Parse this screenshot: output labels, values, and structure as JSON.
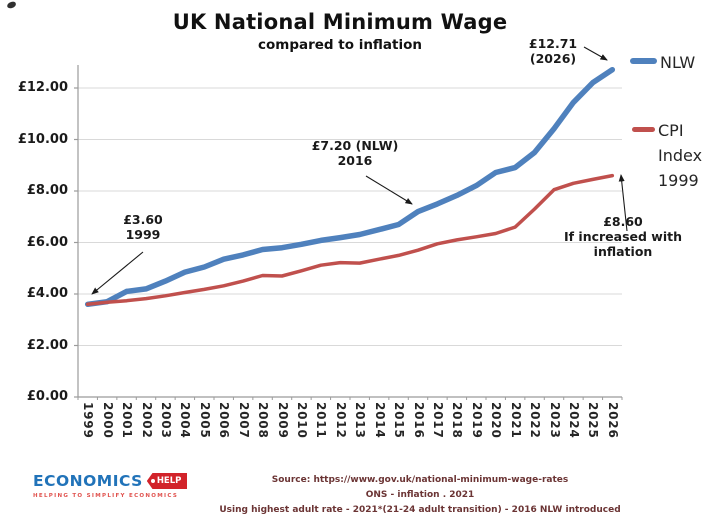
{
  "colors": {
    "nlw": "#4F81BD",
    "cpi": "#C0504D",
    "grid": "#D9D9D9",
    "axis": "#9B9B9B",
    "annotation_text": "#1a1a1a",
    "footer_text": "#6B3434",
    "logo_blue": "#2173B9",
    "logo_red": "#D2232A"
  },
  "chart_data": {
    "type": "line",
    "title": "UK National Minimum Wage",
    "subtitle": "compared to inflation",
    "xlabel": "",
    "ylabel": "",
    "ylim": [
      0,
      13
    ],
    "grid": "horizontal",
    "legend_position": "right",
    "x": [
      1999,
      2000,
      2001,
      2002,
      2003,
      2004,
      2005,
      2006,
      2007,
      2008,
      2009,
      2010,
      2011,
      2012,
      2013,
      2014,
      2015,
      2016,
      2017,
      2018,
      2019,
      2020,
      2021,
      2022,
      2023,
      2024,
      2025,
      2026
    ],
    "series": [
      {
        "name": "NLW",
        "color": "#4F81BD",
        "values": [
          3.6,
          3.7,
          4.1,
          4.2,
          4.5,
          4.85,
          5.05,
          5.35,
          5.52,
          5.73,
          5.8,
          5.93,
          6.08,
          6.19,
          6.31,
          6.5,
          6.7,
          7.2,
          7.5,
          7.83,
          8.21,
          8.72,
          8.91,
          9.5,
          10.42,
          11.44,
          12.21,
          12.71
        ]
      },
      {
        "name": "CPI Index 1999",
        "color": "#C0504D",
        "values": [
          3.6,
          3.68,
          3.74,
          3.82,
          3.93,
          4.06,
          4.18,
          4.32,
          4.5,
          4.72,
          4.7,
          4.9,
          5.12,
          5.22,
          5.2,
          5.35,
          5.5,
          5.7,
          5.95,
          6.1,
          6.22,
          6.35,
          6.6,
          7.3,
          8.05,
          8.3,
          8.45,
          8.6
        ]
      }
    ],
    "y_ticks": [
      {
        "value": 0,
        "label": "£0.00"
      },
      {
        "value": 2,
        "label": "£2.00"
      },
      {
        "value": 4,
        "label": "£4.00"
      },
      {
        "value": 6,
        "label": "£6.00"
      },
      {
        "value": 8,
        "label": "£8.00"
      },
      {
        "value": 10,
        "label": "£10.00"
      },
      {
        "value": 12,
        "label": "£12.00"
      }
    ],
    "legend": {
      "nlw": "NLW",
      "cpi_lines": [
        "CPI",
        "Index",
        "1999"
      ]
    },
    "annotations": {
      "nlw_end": {
        "line1": "£12.71",
        "line2": "(2026)"
      },
      "nlw_2016": {
        "line1": "£7.20 (NLW)",
        "line2": "2016"
      },
      "start": {
        "line1": "£3.60",
        "line2": "1999"
      },
      "cpi_end": {
        "line1": "£8.60",
        "line2": "If increased with",
        "line3": "inflation"
      }
    }
  },
  "footer": {
    "source_line1": "Source: https://www.gov.uk/national-minimum-wage-rates",
    "source_line2": "ONS - inflation . 2021",
    "source_line3": "Using highest adult rate - 2021*(21-24 adult transition) - 2016 NLW introduced",
    "logo_text": "ECONOMICS",
    "logo_tag": "HELP",
    "logo_tagline": "HELPING TO SIMPLIFY ECONOMICS"
  }
}
